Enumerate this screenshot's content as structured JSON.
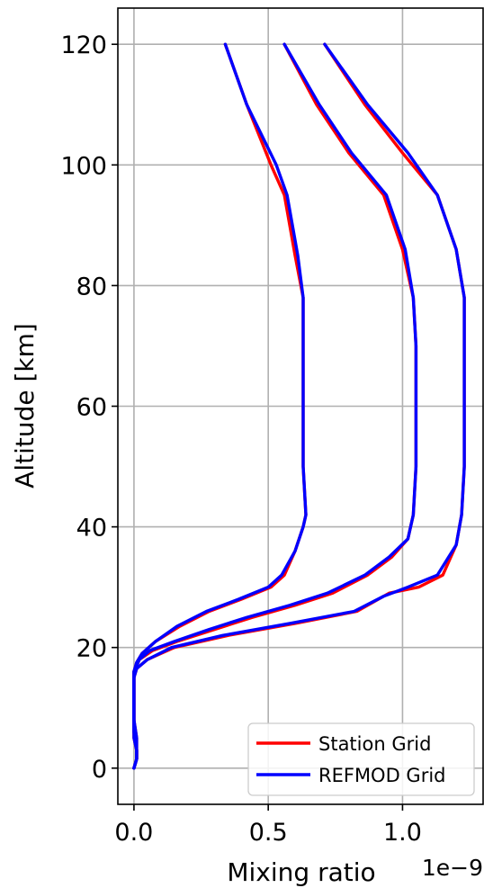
{
  "chart_data": {
    "type": "line",
    "xlabel": "Mixing ratio",
    "ylabel": "Altitude [km]",
    "x_offset_label": "1e−9",
    "xlim": [
      -0.06,
      1.3
    ],
    "ylim": [
      -6,
      126
    ],
    "xticks": [
      0.0,
      0.5,
      1.0
    ],
    "xtick_labels": [
      "0.0",
      "0.5",
      "1.0"
    ],
    "yticks": [
      0,
      20,
      40,
      60,
      80,
      100,
      120
    ],
    "ytick_labels": [
      "0",
      "20",
      "40",
      "60",
      "80",
      "100",
      "120"
    ],
    "grid": true,
    "legend_position": "lower-right",
    "series": [
      {
        "name": "Station Grid",
        "color": "#ff0000",
        "profiles": [
          [
            [
              0.34,
              120
            ],
            [
              0.42,
              110
            ],
            [
              0.51,
              100
            ],
            [
              0.56,
              95
            ],
            [
              0.6,
              85
            ],
            [
              0.63,
              78
            ],
            [
              0.63,
              70
            ],
            [
              0.63,
              60
            ],
            [
              0.63,
              50
            ],
            [
              0.64,
              42
            ],
            [
              0.63,
              40
            ],
            [
              0.6,
              36
            ],
            [
              0.56,
              32
            ],
            [
              0.51,
              30
            ],
            [
              0.4,
              28
            ],
            [
              0.28,
              26
            ],
            [
              0.17,
              23.5
            ],
            [
              0.08,
              21
            ],
            [
              0.03,
              19
            ],
            [
              0.01,
              17.5
            ],
            [
              0.0,
              16
            ],
            [
              0.0,
              12
            ],
            [
              0.0,
              8
            ],
            [
              0.0,
              5
            ],
            [
              0.01,
              3
            ],
            [
              0.01,
              1.5
            ],
            [
              0.0,
              0
            ]
          ],
          [
            [
              0.56,
              120
            ],
            [
              0.68,
              110
            ],
            [
              0.8,
              102
            ],
            [
              0.93,
              95
            ],
            [
              1.0,
              86
            ],
            [
              1.04,
              78
            ],
            [
              1.05,
              70
            ],
            [
              1.05,
              60
            ],
            [
              1.05,
              50
            ],
            [
              1.04,
              42
            ],
            [
              1.02,
              38
            ],
            [
              0.96,
              35
            ],
            [
              0.87,
              32
            ],
            [
              0.74,
              29
            ],
            [
              0.6,
              27
            ],
            [
              0.44,
              25
            ],
            [
              0.3,
              23
            ],
            [
              0.16,
              21
            ],
            [
              0.07,
              19.5
            ],
            [
              0.02,
              18
            ],
            [
              0.0,
              16
            ],
            [
              0.0,
              12
            ],
            [
              0.0,
              8
            ],
            [
              0.01,
              5
            ],
            [
              0.01,
              3
            ],
            [
              0.01,
              1.5
            ],
            [
              0.0,
              0
            ]
          ],
          [
            [
              0.71,
              120
            ],
            [
              0.86,
              110
            ],
            [
              1.0,
              102
            ],
            [
              1.13,
              95
            ],
            [
              1.2,
              86
            ],
            [
              1.23,
              78
            ],
            [
              1.23,
              70
            ],
            [
              1.23,
              60
            ],
            [
              1.23,
              50
            ],
            [
              1.22,
              42
            ],
            [
              1.2,
              37
            ],
            [
              1.15,
              32
            ],
            [
              1.06,
              30
            ],
            [
              0.95,
              29
            ],
            [
              0.83,
              26
            ],
            [
              0.6,
              24
            ],
            [
              0.35,
              22
            ],
            [
              0.15,
              20
            ],
            [
              0.05,
              18
            ],
            [
              0.01,
              16.5
            ],
            [
              0.0,
              15
            ],
            [
              0.0,
              10
            ],
            [
              0.0,
              6
            ],
            [
              0.01,
              3
            ],
            [
              0.01,
              1.5
            ],
            [
              0.0,
              0
            ]
          ]
        ]
      },
      {
        "name": "REFMOD Grid",
        "color": "#0000ff",
        "profiles": [
          [
            [
              0.34,
              120
            ],
            [
              0.42,
              110
            ],
            [
              0.53,
              100
            ],
            [
              0.57,
              95
            ],
            [
              0.61,
              85
            ],
            [
              0.63,
              78
            ],
            [
              0.63,
              70
            ],
            [
              0.63,
              60
            ],
            [
              0.63,
              50
            ],
            [
              0.64,
              42
            ],
            [
              0.63,
              40
            ],
            [
              0.6,
              36
            ],
            [
              0.55,
              32
            ],
            [
              0.5,
              30
            ],
            [
              0.39,
              28
            ],
            [
              0.27,
              26
            ],
            [
              0.16,
              23.5
            ],
            [
              0.08,
              21
            ],
            [
              0.03,
              19
            ],
            [
              0.01,
              17.5
            ],
            [
              0.0,
              16
            ],
            [
              0.0,
              12
            ],
            [
              0.0,
              8
            ],
            [
              0.0,
              5
            ],
            [
              0.01,
              3
            ],
            [
              0.01,
              1.5
            ],
            [
              0.0,
              0
            ]
          ],
          [
            [
              0.56,
              120
            ],
            [
              0.69,
              110
            ],
            [
              0.81,
              102
            ],
            [
              0.94,
              95
            ],
            [
              1.01,
              86
            ],
            [
              1.04,
              78
            ],
            [
              1.05,
              70
            ],
            [
              1.05,
              60
            ],
            [
              1.05,
              50
            ],
            [
              1.04,
              42
            ],
            [
              1.02,
              38
            ],
            [
              0.95,
              35
            ],
            [
              0.86,
              32
            ],
            [
              0.72,
              29
            ],
            [
              0.58,
              27
            ],
            [
              0.42,
              25
            ],
            [
              0.28,
              23
            ],
            [
              0.15,
              21
            ],
            [
              0.06,
              19.5
            ],
            [
              0.02,
              18
            ],
            [
              0.0,
              16
            ],
            [
              0.0,
              12
            ],
            [
              0.0,
              8
            ],
            [
              0.01,
              5
            ],
            [
              0.01,
              3
            ],
            [
              0.01,
              1.5
            ],
            [
              0.0,
              0
            ]
          ],
          [
            [
              0.71,
              120
            ],
            [
              0.87,
              110
            ],
            [
              1.02,
              102
            ],
            [
              1.13,
              95
            ],
            [
              1.2,
              86
            ],
            [
              1.23,
              78
            ],
            [
              1.23,
              70
            ],
            [
              1.23,
              60
            ],
            [
              1.23,
              50
            ],
            [
              1.22,
              42
            ],
            [
              1.2,
              37
            ],
            [
              1.13,
              32
            ],
            [
              1.02,
              30
            ],
            [
              0.93,
              28.5
            ],
            [
              0.82,
              26
            ],
            [
              0.58,
              24
            ],
            [
              0.33,
              22
            ],
            [
              0.14,
              20
            ],
            [
              0.05,
              18
            ],
            [
              0.01,
              16.5
            ],
            [
              0.0,
              15
            ],
            [
              0.0,
              10
            ],
            [
              0.0,
              6
            ],
            [
              0.01,
              3
            ],
            [
              0.01,
              1.5
            ],
            [
              0.0,
              0
            ]
          ]
        ]
      }
    ]
  }
}
